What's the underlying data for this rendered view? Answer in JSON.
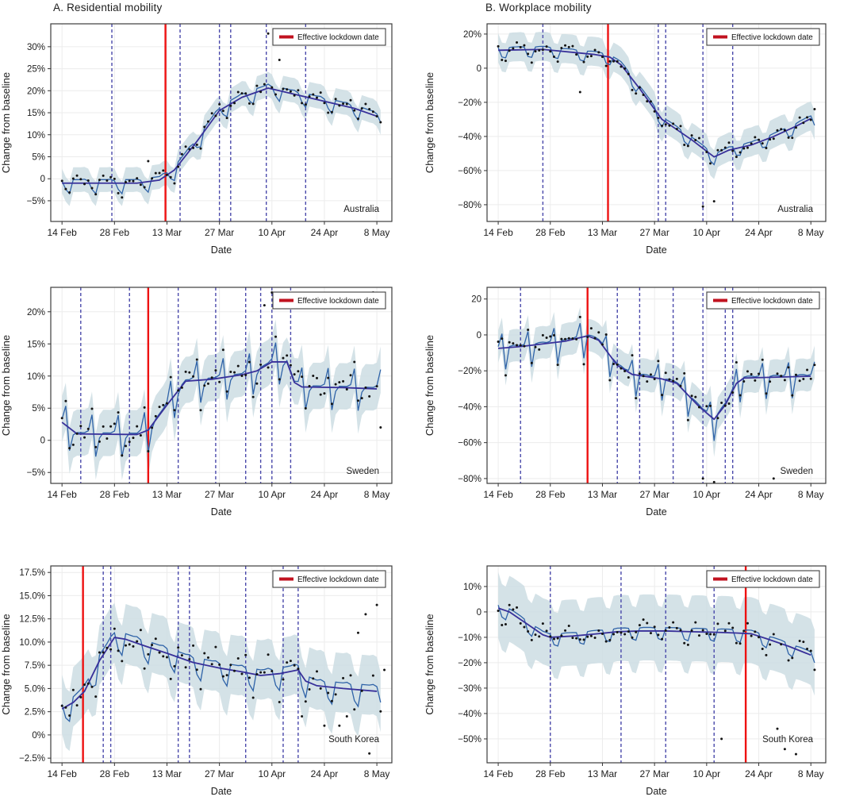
{
  "chart_data": {
    "type": "line",
    "panel_titles": {
      "a": "A. Residential mobility",
      "b": "B. Workplace mobility"
    },
    "legend_label": "Effective lockdown date",
    "x_label": "Date",
    "y_label": "Change from baseline",
    "x_ticks": [
      {
        "day": 0,
        "label": "14 Feb"
      },
      {
        "day": 14,
        "label": "28 Feb"
      },
      {
        "day": 28,
        "label": "13 Mar"
      },
      {
        "day": 42,
        "label": "27 Mar"
      },
      {
        "day": 56,
        "label": "10 Apr"
      },
      {
        "day": 70,
        "label": "24 Apr"
      },
      {
        "day": 84,
        "label": "8 May"
      }
    ],
    "x_range_days": [
      -3,
      88
    ],
    "colors": {
      "lockdown": "#ee1111",
      "legend_swatch": "#c1121f",
      "intervention": "#4a49ab",
      "trend": "#38309a",
      "fit": "#2f63a8",
      "band": "#cdddE3",
      "dot": "#141414",
      "grid": "#ececec",
      "border": "#3d3d3d",
      "text": "#1c1c1c"
    },
    "charts": [
      {
        "name": "australia-residential",
        "column": "A",
        "row": 0,
        "country": "Australia",
        "y_ticks": [
          {
            "v": 30,
            "label": "30%"
          },
          {
            "v": 25,
            "label": "25%"
          },
          {
            "v": 20,
            "label": "20%"
          },
          {
            "v": 15,
            "label": "15%"
          },
          {
            "v": 10,
            "label": "10%"
          },
          {
            "v": 5,
            "label": "5%"
          },
          {
            "v": 0,
            "label": "0"
          },
          {
            "v": -5,
            "label": "−5%"
          }
        ],
        "y_range": [
          -9.7,
          35.2
        ],
        "lockdown_day": 27.6,
        "intervention_days": [
          13.3,
          31.5,
          42,
          45,
          54.5,
          65
        ],
        "trend": [
          [
            0,
            -1
          ],
          [
            20,
            -1
          ],
          [
            26,
            -0.3
          ],
          [
            30,
            2
          ],
          [
            36,
            8.5
          ],
          [
            42,
            15.5
          ],
          [
            48,
            18.5
          ],
          [
            55,
            20.6
          ],
          [
            60,
            19.6
          ],
          [
            70,
            17.6
          ],
          [
            78,
            16
          ],
          [
            84,
            14.2
          ]
        ],
        "weekly": [
          0.5,
          -1.4,
          -2.4,
          0.8,
          0.8,
          0.8,
          0.9
        ],
        "band_halfwidth": 2.8,
        "dot_noise": 1.3,
        "seed": 11,
        "outliers": [
          [
            23,
            4
          ],
          [
            55,
            33
          ],
          [
            58,
            27
          ]
        ],
        "country_label_dy": -12
      },
      {
        "name": "australia-workplace",
        "column": "B",
        "row": 0,
        "country": "Australia",
        "y_ticks": [
          {
            "v": 20,
            "label": "20%"
          },
          {
            "v": 0,
            "label": "0"
          },
          {
            "v": -20,
            "label": "−20%"
          },
          {
            "v": -40,
            "label": "−40%"
          },
          {
            "v": -60,
            "label": "−60%"
          },
          {
            "v": -80,
            "label": "−80%"
          }
        ],
        "y_range": [
          -89.8,
          26
        ],
        "lockdown_day": 29.5,
        "intervention_days": [
          12,
          43,
          45,
          55,
          63
        ],
        "trend": [
          [
            0,
            10.5
          ],
          [
            12,
            11
          ],
          [
            26,
            8
          ],
          [
            30,
            6.5
          ],
          [
            33,
            2
          ],
          [
            38,
            -12
          ],
          [
            44,
            -30
          ],
          [
            48,
            -36
          ],
          [
            52,
            -42
          ],
          [
            58,
            -52
          ],
          [
            62,
            -48
          ],
          [
            68,
            -45
          ],
          [
            74,
            -40
          ],
          [
            80,
            -34
          ],
          [
            84,
            -29.5
          ]
        ],
        "weekly": [
          1.5,
          -4,
          -4.5,
          1.5,
          1.8,
          1.8,
          1.9
        ],
        "band_halfwidth": 8.5,
        "dot_noise": 3.2,
        "seed": 22,
        "outliers": [
          [
            22,
            -14
          ],
          [
            55,
            -81
          ],
          [
            58,
            -78
          ],
          [
            85,
            -24
          ]
        ],
        "country_label_dy": -12
      },
      {
        "name": "sweden-residential",
        "column": "A",
        "row": 1,
        "country": "Sweden",
        "y_ticks": [
          {
            "v": 20,
            "label": "20%"
          },
          {
            "v": 15,
            "label": "15%"
          },
          {
            "v": 10,
            "label": "10%"
          },
          {
            "v": 5,
            "label": "5%"
          },
          {
            "v": 0,
            "label": "0"
          },
          {
            "v": -5,
            "label": "−5%"
          }
        ],
        "y_range": [
          -6.7,
          23.8
        ],
        "lockdown_day": 23,
        "intervention_days": [
          5,
          18,
          31,
          41,
          49,
          53,
          56,
          61
        ],
        "trend": [
          [
            0,
            2.8
          ],
          [
            4,
            1
          ],
          [
            20,
            0.9
          ],
          [
            23,
            1.6
          ],
          [
            28,
            5.5
          ],
          [
            33,
            9.2
          ],
          [
            40,
            9.5
          ],
          [
            48,
            10.2
          ],
          [
            52,
            10.8
          ],
          [
            56,
            12.2
          ],
          [
            60,
            12.2
          ],
          [
            62,
            9
          ],
          [
            64,
            8.3
          ],
          [
            75,
            8.2
          ],
          [
            84,
            8
          ]
        ],
        "weekly": [
          0.5,
          3,
          -3.5,
          -0.6,
          0.2,
          0.2,
          0.2
        ],
        "band_halfwidth": 3.6,
        "dot_noise": 1.6,
        "seed": 33,
        "outliers": [
          [
            54,
            21
          ],
          [
            56,
            23
          ],
          [
            83,
            23
          ],
          [
            85,
            2
          ]
        ],
        "country_label_dy": -12
      },
      {
        "name": "sweden-workplace",
        "column": "B",
        "row": 1,
        "country": "Sweden",
        "y_ticks": [
          {
            "v": 20,
            "label": "20"
          },
          {
            "v": 0,
            "label": "0"
          },
          {
            "v": -20,
            "label": "−20%"
          },
          {
            "v": -40,
            "label": "−40%"
          },
          {
            "v": -60,
            "label": "−60%"
          },
          {
            "v": -80,
            "label": "−80%"
          }
        ],
        "y_range": [
          -82.7,
          26.5
        ],
        "lockdown_day": 24,
        "intervention_days": [
          6,
          32,
          38,
          47,
          55,
          61,
          63
        ],
        "trend": [
          [
            0,
            -7.5
          ],
          [
            6,
            -6.5
          ],
          [
            18,
            -3.5
          ],
          [
            24,
            -0.5
          ],
          [
            27,
            -3
          ],
          [
            32,
            -17
          ],
          [
            36,
            -22
          ],
          [
            44,
            -24.5
          ],
          [
            48,
            -27
          ],
          [
            54,
            -40
          ],
          [
            58,
            -47
          ],
          [
            61,
            -39
          ],
          [
            64,
            -27
          ],
          [
            66,
            -24
          ],
          [
            75,
            -23.5
          ],
          [
            84,
            -23
          ]
        ],
        "weekly": [
          1,
          8,
          -12,
          0.5,
          1,
          1,
          0.5
        ],
        "band_halfwidth": 9,
        "dot_noise": 4,
        "seed": 44,
        "outliers": [
          [
            55,
            -80
          ],
          [
            58,
            -82
          ],
          [
            74,
            -80
          ]
        ],
        "country_label_dy": -12
      },
      {
        "name": "south-korea-residential",
        "column": "A",
        "row": 2,
        "country": "South Korea",
        "y_ticks": [
          {
            "v": 17.5,
            "label": "17.5%"
          },
          {
            "v": 15,
            "label": "15.0%"
          },
          {
            "v": 12.5,
            "label": "12.5%"
          },
          {
            "v": 10,
            "label": "10.0%"
          },
          {
            "v": 7.5,
            "label": "7.5%"
          },
          {
            "v": 5,
            "label": "5.0%"
          },
          {
            "v": 2.5,
            "label": "2.5%"
          },
          {
            "v": 0,
            "label": "0%"
          },
          {
            "v": -2.5,
            "label": "−2.5%"
          }
        ],
        "y_range": [
          -3.0,
          18.2
        ],
        "lockdown_day": 5.6,
        "intervention_days": [
          11,
          13,
          31,
          34,
          49,
          59,
          63
        ],
        "trend": [
          [
            0,
            2.8
          ],
          [
            3,
            3.5
          ],
          [
            6,
            4.7
          ],
          [
            10,
            8
          ],
          [
            14,
            10.5
          ],
          [
            17,
            10.3
          ],
          [
            22,
            9.6
          ],
          [
            28,
            8.8
          ],
          [
            35,
            7.8
          ],
          [
            42,
            7.2
          ],
          [
            48,
            6.8
          ],
          [
            53,
            6.4
          ],
          [
            58,
            6.6
          ],
          [
            63,
            7
          ],
          [
            65,
            5.8
          ],
          [
            68,
            5.3
          ],
          [
            75,
            5
          ],
          [
            84,
            4.7
          ]
        ],
        "weekly": [
          0.5,
          -1.2,
          -1.8,
          0.6,
          0.6,
          0.6,
          0.7
        ],
        "band_halfwidth": 3.2,
        "dot_noise": 1.5,
        "seed": 55,
        "outliers": [
          [
            57,
            17
          ],
          [
            79,
            11
          ],
          [
            81,
            13
          ],
          [
            84,
            14
          ],
          [
            64,
            2
          ],
          [
            70,
            1
          ],
          [
            74,
            1
          ],
          [
            76,
            2
          ],
          [
            82,
            -2
          ],
          [
            86,
            7
          ]
        ],
        "country_label_dy": -26
      },
      {
        "name": "south-korea-workplace",
        "column": "B",
        "row": 2,
        "country": "South Korea",
        "y_ticks": [
          {
            "v": 10,
            "label": "10%"
          },
          {
            "v": 0,
            "label": "0"
          },
          {
            "v": -10,
            "label": "−10%"
          },
          {
            "v": -20,
            "label": "−20%"
          },
          {
            "v": -30,
            "label": "−30%"
          },
          {
            "v": -40,
            "label": "−40%"
          },
          {
            "v": -50,
            "label": "−50%"
          }
        ],
        "y_range": [
          -59.4,
          18.1
        ],
        "lockdown_day": 66.5,
        "intervention_days": [
          14,
          33,
          45,
          58
        ],
        "trend": [
          [
            0,
            1.5
          ],
          [
            3,
            0
          ],
          [
            8,
            -5
          ],
          [
            12,
            -9
          ],
          [
            14,
            -10
          ],
          [
            20,
            -9.5
          ],
          [
            26,
            -8.7
          ],
          [
            32,
            -7.8
          ],
          [
            38,
            -7.5
          ],
          [
            45,
            -7.5
          ],
          [
            52,
            -7.8
          ],
          [
            58,
            -8
          ],
          [
            64,
            -8.3
          ],
          [
            68,
            -8.6
          ],
          [
            72,
            -10.5
          ],
          [
            78,
            -13.5
          ],
          [
            84,
            -17
          ]
        ],
        "weekly": [
          1.2,
          -3,
          -3.6,
          1.2,
          1.4,
          1.4,
          1.4
        ],
        "band_halfwidth": 13,
        "dot_noise": 3.2,
        "seed": 66,
        "outliers": [
          [
            60,
            -50
          ],
          [
            75,
            -46
          ],
          [
            77,
            -54
          ],
          [
            80,
            -56
          ]
        ],
        "country_label_dy": -26
      }
    ]
  }
}
